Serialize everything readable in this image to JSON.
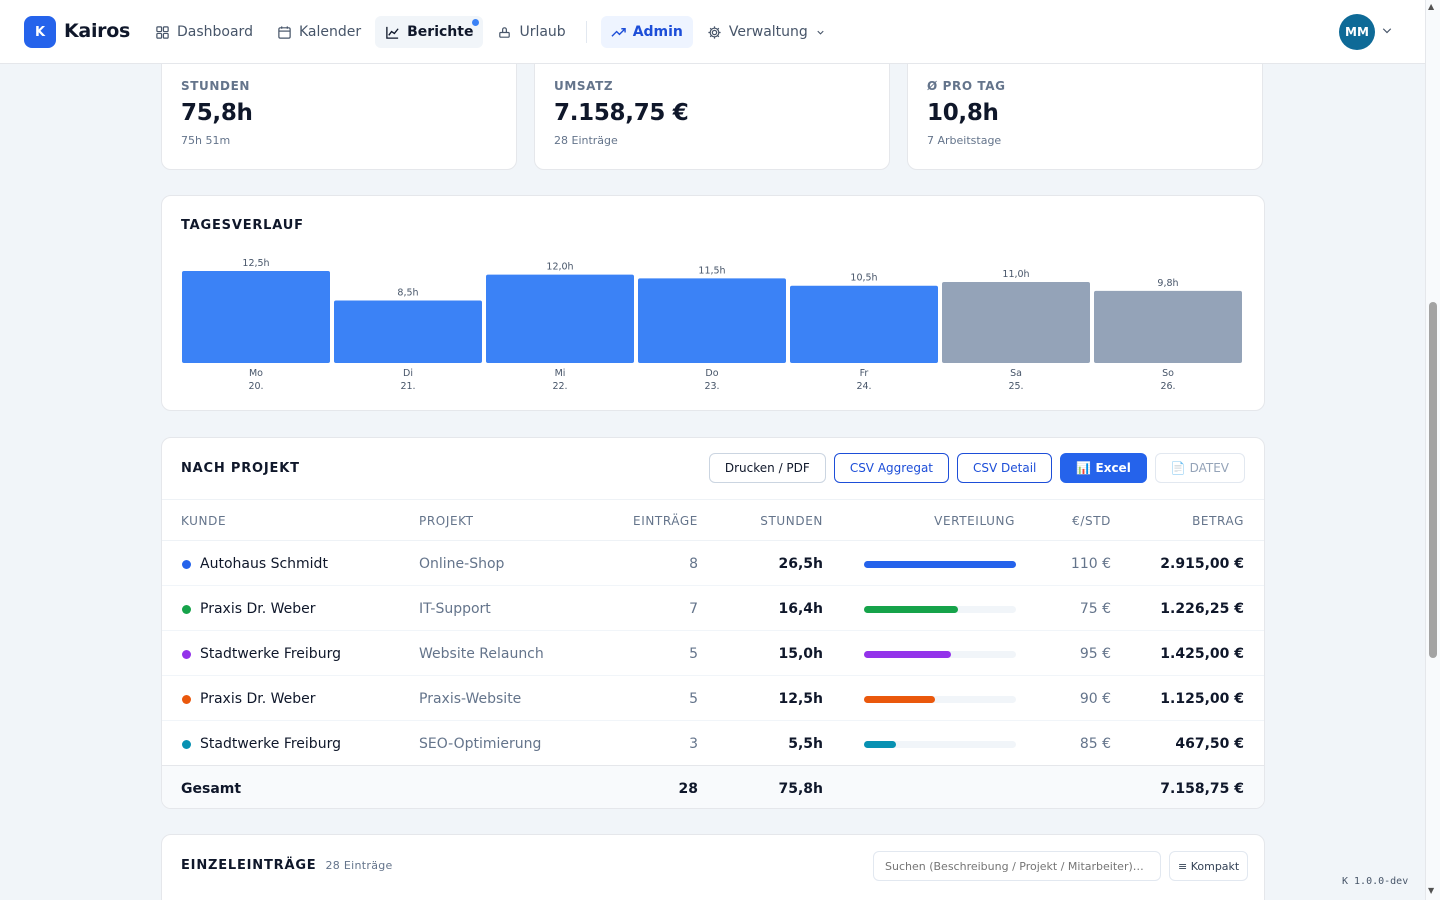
{
  "app": {
    "logo_letter": "K",
    "name": "Kairos"
  },
  "nav": [
    {
      "label": "Dashboard",
      "icon": "dashboard-icon"
    },
    {
      "label": "Kalender",
      "icon": "calendar-icon"
    },
    {
      "label": "Berichte",
      "icon": "chart-icon",
      "active": true,
      "badge_dot": true
    },
    {
      "label": "Urlaub",
      "icon": "vacation-icon"
    },
    {
      "label": "Admin",
      "icon": "trend-icon"
    },
    {
      "label": "Verwaltung",
      "icon": "gear-icon"
    }
  ],
  "user": {
    "initials": "MM"
  },
  "stats": [
    {
      "label": "STUNDEN",
      "value": "75,8h",
      "sub": "75h 51m"
    },
    {
      "label": "UMSATZ",
      "value": "7.158,75 €",
      "sub": "28 Einträge"
    },
    {
      "label": "Ø PRO TAG",
      "value": "10,8h",
      "sub": "7 Arbeitstage"
    }
  ],
  "chart_data": {
    "type": "bar",
    "title": "TAGESVERLAUF",
    "categories": [
      "Mo 20.",
      "Di 21.",
      "Mi 22.",
      "Do 23.",
      "Fr 24.",
      "Sa 25.",
      "So 26."
    ],
    "day_names": [
      "Mo",
      "Di",
      "Mi",
      "Do",
      "Fr",
      "Sa",
      "So"
    ],
    "day_dates": [
      "20.",
      "21.",
      "22.",
      "23.",
      "24.",
      "25.",
      "26."
    ],
    "values": [
      12.5,
      8.5,
      12.0,
      11.5,
      10.5,
      11.0,
      9.8
    ],
    "value_labels": [
      "12,5h",
      "8,5h",
      "12,0h",
      "11,5h",
      "10,5h",
      "11,0h",
      "9,8h"
    ],
    "weekend": [
      false,
      false,
      false,
      false,
      false,
      true,
      true
    ],
    "colors": {
      "weekday": "#3b82f6",
      "weekend": "#94a3b8"
    },
    "ylim": [
      0,
      12.5
    ],
    "grid": false
  },
  "projects": {
    "title": "NACH PROJEKT",
    "buttons": {
      "print": "Drucken / PDF",
      "csv_aggregate": "CSV Aggregat",
      "csv_detail": "CSV Detail",
      "excel": "📊 Excel",
      "datev": "📄 DATEV"
    },
    "columns": [
      "KUNDE",
      "PROJEKT",
      "EINTRÄGE",
      "STUNDEN",
      "VERTEILUNG",
      "€/STD",
      "BETRAG"
    ],
    "rows": [
      {
        "customer": "Autohaus Schmidt",
        "project": "Online-Shop",
        "entries": "8",
        "hours": "26,5h",
        "share": 1.0,
        "color": "#2563eb",
        "rate": "110 €",
        "amount": "2.915,00 €"
      },
      {
        "customer": "Praxis Dr. Weber",
        "project": "IT-Support",
        "entries": "7",
        "hours": "16,4h",
        "share": 0.62,
        "color": "#16a34a",
        "rate": "75 €",
        "amount": "1.226,25 €"
      },
      {
        "customer": "Stadtwerke Freiburg",
        "project": "Website Relaunch",
        "entries": "5",
        "hours": "15,0h",
        "share": 0.57,
        "color": "#9333ea",
        "rate": "95 €",
        "amount": "1.425,00 €"
      },
      {
        "customer": "Praxis Dr. Weber",
        "project": "Praxis-Website",
        "entries": "5",
        "hours": "12,5h",
        "share": 0.47,
        "color": "#ea580c",
        "rate": "90 €",
        "amount": "1.125,00 €"
      },
      {
        "customer": "Stadtwerke Freiburg",
        "project": "SEO-Optimierung",
        "entries": "3",
        "hours": "5,5h",
        "share": 0.21,
        "color": "#0891b2",
        "rate": "85 €",
        "amount": "467,50 €"
      }
    ],
    "total": {
      "label": "Gesamt",
      "entries": "28",
      "hours": "75,8h",
      "amount": "7.158,75 €"
    }
  },
  "entries": {
    "title": "EINZELEINTRÄGE",
    "count": "28 Einträge",
    "search_placeholder": "Suchen (Beschreibung / Projekt / Mitarbeiter)…",
    "compact_label": "≡ Kompakt"
  },
  "version": "K 1.0.0-dev"
}
